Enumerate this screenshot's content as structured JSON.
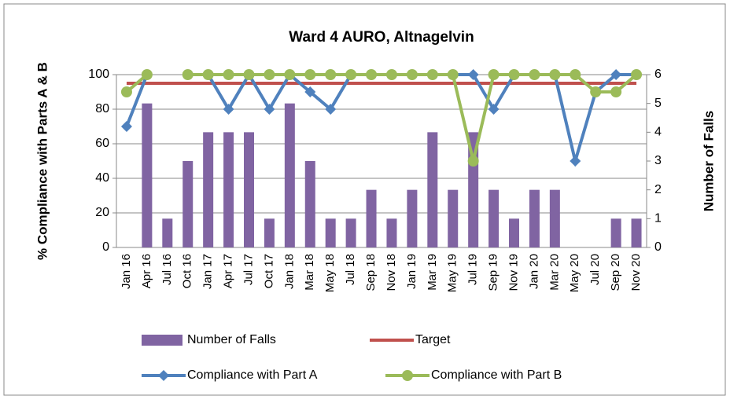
{
  "chart_data": {
    "type": "bar_line",
    "title": "Ward 4 AURO, Altnagelvin",
    "categories": [
      "Jan 16",
      "Apr 16",
      "Jul 16",
      "Oct 16",
      "Jan 17",
      "Apr 17",
      "Jul 17",
      "Oct 17",
      "Jan 18",
      "Mar 18",
      "May 18",
      "Jul 18",
      "Sep 18",
      "Nov 18",
      "Jan 19",
      "Mar 19",
      "May 19",
      "Jul 19",
      "Sep 19",
      "Nov 19",
      "Jan 20",
      "Mar 20",
      "May 20",
      "Jul 20",
      "Sep 20",
      "Nov 20"
    ],
    "y_label": "% Compliance with Parts A & B",
    "y2_label": "Number of Falls",
    "ylim": [
      0,
      100
    ],
    "yticks": [
      0,
      20,
      40,
      60,
      80,
      100
    ],
    "y2lim": [
      0,
      6
    ],
    "y2ticks": [
      0,
      1,
      2,
      3,
      4,
      5,
      6
    ],
    "grid": true,
    "series": [
      {
        "name": "Number of Falls",
        "type": "bar",
        "axis": "y2",
        "color": "#8064a2",
        "values": [
          0,
          5,
          1,
          3,
          4,
          4,
          4,
          1,
          5,
          3,
          1,
          1,
          2,
          1,
          2,
          4,
          2,
          4,
          2,
          1,
          2,
          2,
          0,
          0,
          1,
          1
        ]
      },
      {
        "name": "Target",
        "type": "line",
        "color": "#c0504d",
        "values": [
          95,
          95,
          95,
          95,
          95,
          95,
          95,
          95,
          95,
          95,
          95,
          95,
          95,
          95,
          95,
          95,
          95,
          95,
          95,
          95,
          95,
          95,
          95,
          95,
          95,
          95
        ]
      },
      {
        "name": "Compliance with Part A",
        "type": "line",
        "marker": "diamond",
        "color": "#4f81bd",
        "values": [
          70,
          100,
          null,
          100,
          100,
          80,
          100,
          80,
          100,
          90,
          80,
          100,
          100,
          100,
          100,
          100,
          100,
          100,
          80,
          100,
          100,
          100,
          50,
          90,
          100,
          100
        ]
      },
      {
        "name": "Compliance with Part B",
        "type": "line",
        "marker": "circle",
        "color": "#9bbb59",
        "values": [
          90,
          100,
          null,
          100,
          100,
          100,
          100,
          100,
          100,
          100,
          100,
          100,
          100,
          100,
          100,
          100,
          100,
          50,
          100,
          100,
          100,
          100,
          100,
          90,
          90,
          100
        ]
      }
    ]
  }
}
